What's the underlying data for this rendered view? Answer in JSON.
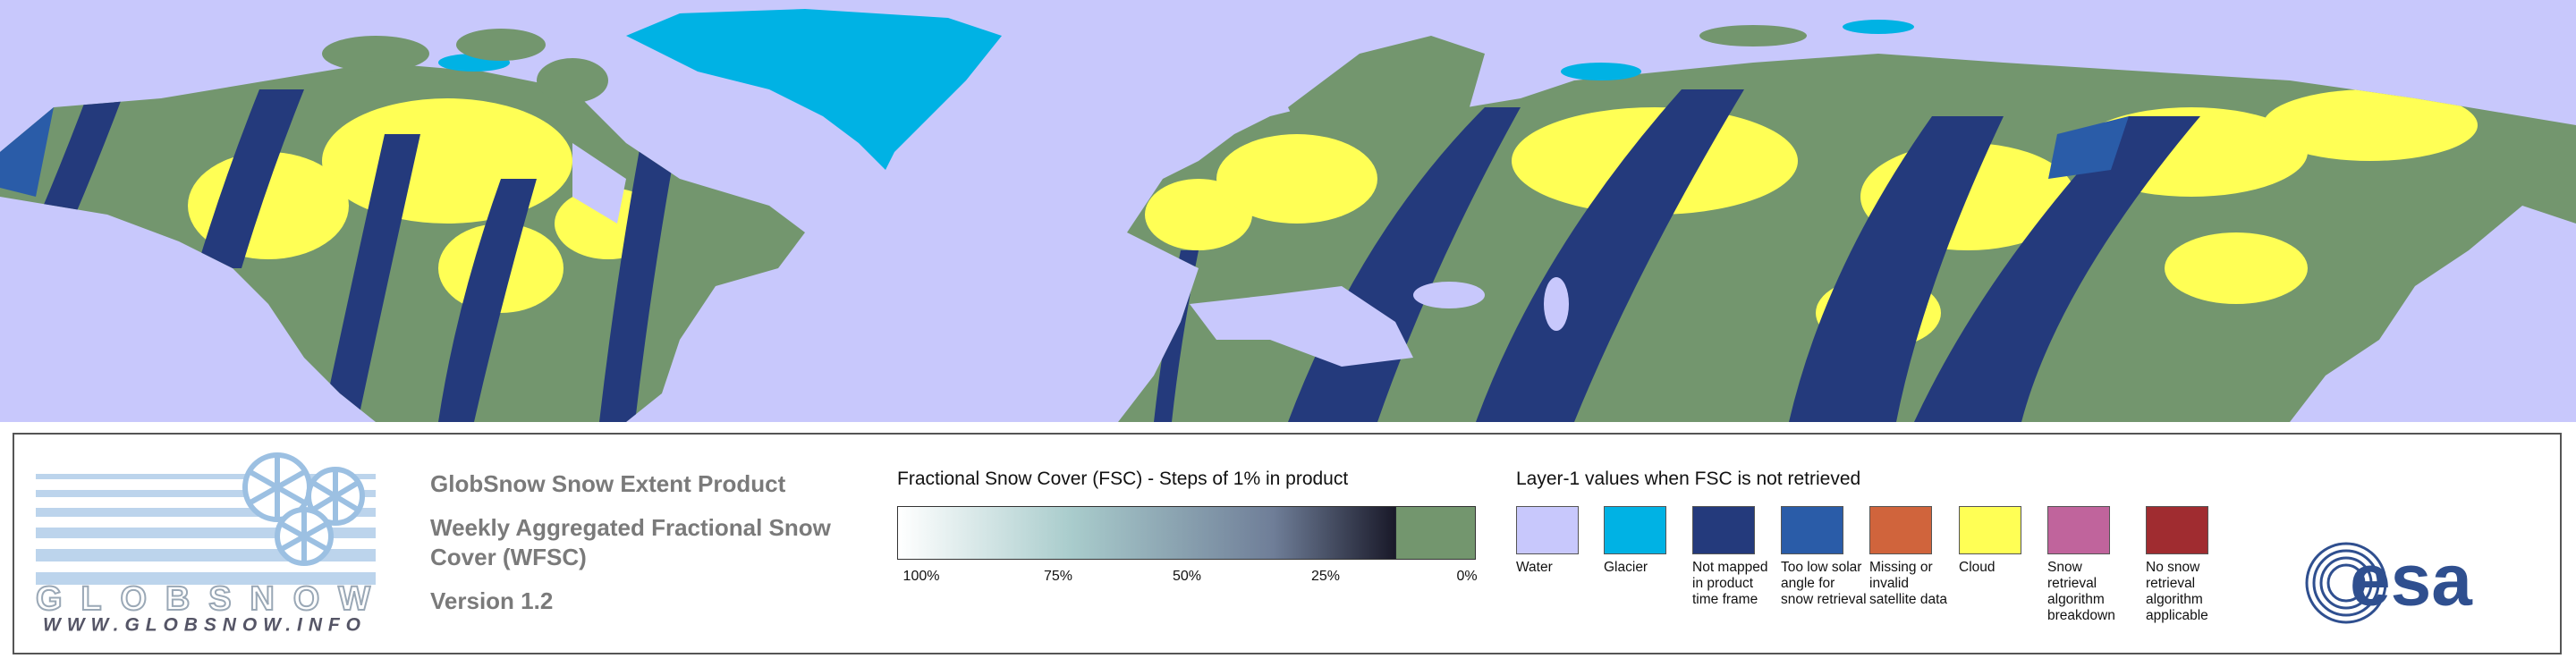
{
  "logo": {
    "wordmark": "GLOBSNOW",
    "url": "WWW.GLOBSNOW.INFO"
  },
  "product": {
    "title": "GlobSnow Snow Extent Product",
    "subtitle": "Weekly Aggregated Fractional Snow Cover (WFSC)",
    "version": "Version 1.2"
  },
  "colorbar": {
    "title": "Fractional Snow Cover (FSC) - Steps of 1% in product",
    "ticks": [
      "100%",
      "75%",
      "50%",
      "25%",
      "0%"
    ]
  },
  "legend": {
    "title": "Layer-1 values when FSC is not retrieved",
    "items": [
      {
        "label": "Water",
        "color": "#c8c8fc"
      },
      {
        "label": "Glacier",
        "color": "#00b2e4"
      },
      {
        "label": "Not mapped in product time frame",
        "color": "#243a7c"
      },
      {
        "label": "Too low solar angle for snow retrieval",
        "color": "#2a5ca8"
      },
      {
        "label": "Missing or invalid satellite data",
        "color": "#d0643c"
      },
      {
        "label": "Cloud",
        "color": "#ffff55"
      },
      {
        "label": "Snow retrieval algorithm breakdown",
        "color": "#c0649c"
      },
      {
        "label": "No snow retrieval algorithm applicable",
        "color": "#a02c30"
      }
    ]
  },
  "agency": "esa"
}
